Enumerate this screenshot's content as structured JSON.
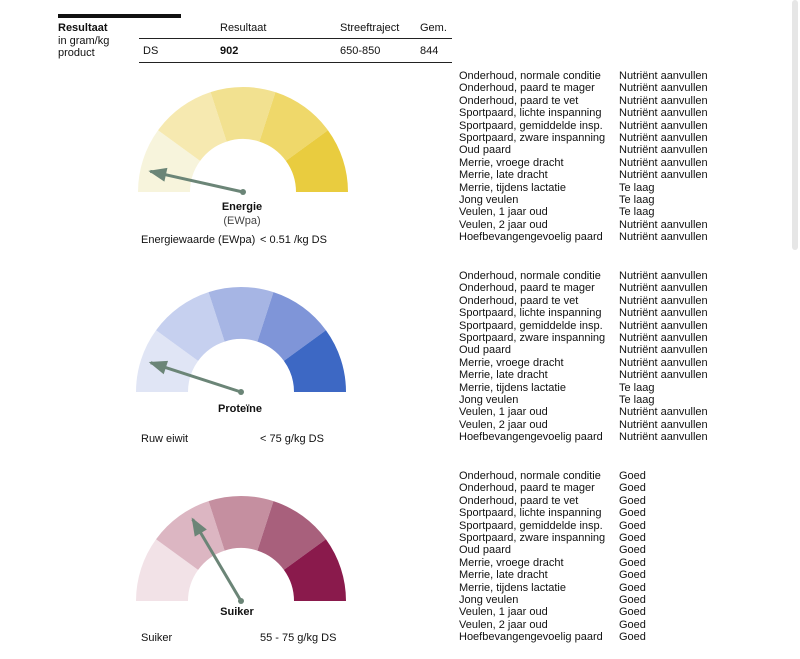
{
  "header": {
    "title": "Resultaat",
    "subtitle": "in gram/kg product",
    "col_result": "Resultaat",
    "col_range": "Streeftraject",
    "col_avg": "Gem.",
    "row_label": "DS",
    "row_result": "902",
    "row_range": "650-850",
    "row_avg": "844"
  },
  "sections": [
    {
      "name": "Energie",
      "unit_label": "(EWpa)",
      "metric_label": "Energiewaarde (EWpa)",
      "metric_value": "< 0.51 /kg DS",
      "colors": [
        "#f7f4dc",
        "#f6e9b0",
        "#f2e190",
        "#efd86a",
        "#e9cc3f"
      ],
      "needle_level": 0.07,
      "conditions": [
        {
          "label": "Onderhoud, normale conditie",
          "status": "Nutriënt aanvullen"
        },
        {
          "label": "Onderhoud, paard te mager",
          "status": "Nutriënt aanvullen"
        },
        {
          "label": "Onderhoud, paard te vet",
          "status": "Nutriënt aanvullen"
        },
        {
          "label": "Sportpaard, lichte inspanning",
          "status": "Nutriënt aanvullen"
        },
        {
          "label": "Sportpaard, gemiddelde insp.",
          "status": "Nutriënt aanvullen"
        },
        {
          "label": "Sportpaard, zware inspanning",
          "status": "Nutriënt aanvullen"
        },
        {
          "label": "Oud paard",
          "status": "Nutriënt aanvullen"
        },
        {
          "label": "Merrie, vroege dracht",
          "status": "Nutriënt aanvullen"
        },
        {
          "label": "Merrie, late dracht",
          "status": "Nutriënt aanvullen"
        },
        {
          "label": "Merrie, tijdens lactatie",
          "status": "Te laag"
        },
        {
          "label": "Jong veulen",
          "status": "Te laag"
        },
        {
          "label": "Veulen, 1 jaar oud",
          "status": "Te laag"
        },
        {
          "label": "Veulen, 2 jaar oud",
          "status": "Nutriënt aanvullen"
        },
        {
          "label": "Hoefbevangengevoelig paard",
          "status": "Nutriënt aanvullen"
        }
      ]
    },
    {
      "name": "Proteïne",
      "unit_label": "",
      "metric_label": "Ruw eiwit",
      "metric_value": "< 75 g/kg DS",
      "colors": [
        "#e0e5f5",
        "#c6d0ef",
        "#a6b5e4",
        "#7f95d8",
        "#3d68c4"
      ],
      "needle_level": 0.1,
      "conditions": [
        {
          "label": "Onderhoud, normale conditie",
          "status": "Nutriënt aanvullen"
        },
        {
          "label": "Onderhoud, paard te mager",
          "status": "Nutriënt aanvullen"
        },
        {
          "label": "Onderhoud, paard te vet",
          "status": "Nutriënt aanvullen"
        },
        {
          "label": "Sportpaard, lichte inspanning",
          "status": "Nutriënt aanvullen"
        },
        {
          "label": "Sportpaard, gemiddelde insp.",
          "status": "Nutriënt aanvullen"
        },
        {
          "label": "Sportpaard, zware inspanning",
          "status": "Nutriënt aanvullen"
        },
        {
          "label": "Oud paard",
          "status": "Nutriënt aanvullen"
        },
        {
          "label": "Merrie, vroege dracht",
          "status": "Nutriënt aanvullen"
        },
        {
          "label": "Merrie, late dracht",
          "status": "Nutriënt aanvullen"
        },
        {
          "label": "Merrie, tijdens lactatie",
          "status": "Te laag"
        },
        {
          "label": "Jong veulen",
          "status": "Te laag"
        },
        {
          "label": "Veulen, 1 jaar oud",
          "status": "Nutriënt aanvullen"
        },
        {
          "label": "Veulen, 2 jaar oud",
          "status": "Nutriënt aanvullen"
        },
        {
          "label": "Hoefbevangengevoelig paard",
          "status": "Nutriënt aanvullen"
        }
      ]
    },
    {
      "name": "Suiker",
      "unit_label": "",
      "metric_label": "Suiker",
      "metric_value": "55 - 75 g/kg DS",
      "colors": [
        "#f2e2e7",
        "#dcb6c2",
        "#c58fa0",
        "#a8607c",
        "#8a1a4c"
      ],
      "needle_level": 0.33,
      "conditions": [
        {
          "label": "Onderhoud, normale conditie",
          "status": "Goed"
        },
        {
          "label": "Onderhoud, paard te mager",
          "status": "Goed"
        },
        {
          "label": "Onderhoud, paard te vet",
          "status": "Goed"
        },
        {
          "label": "Sportpaard, lichte inspanning",
          "status": "Goed"
        },
        {
          "label": "Sportpaard, gemiddelde insp.",
          "status": "Goed"
        },
        {
          "label": "Sportpaard, zware inspanning",
          "status": "Goed"
        },
        {
          "label": "Oud paard",
          "status": "Goed"
        },
        {
          "label": "Merrie, vroege dracht",
          "status": "Goed"
        },
        {
          "label": "Merrie, late dracht",
          "status": "Goed"
        },
        {
          "label": "Merrie, tijdens lactatie",
          "status": "Goed"
        },
        {
          "label": "Jong veulen",
          "status": "Goed"
        },
        {
          "label": "Veulen, 1 jaar oud",
          "status": "Goed"
        },
        {
          "label": "Veulen, 2 jaar oud",
          "status": "Goed"
        },
        {
          "label": "Hoefbevangengevoelig paard",
          "status": "Goed"
        }
      ]
    }
  ],
  "needle_color": "#6b8577"
}
